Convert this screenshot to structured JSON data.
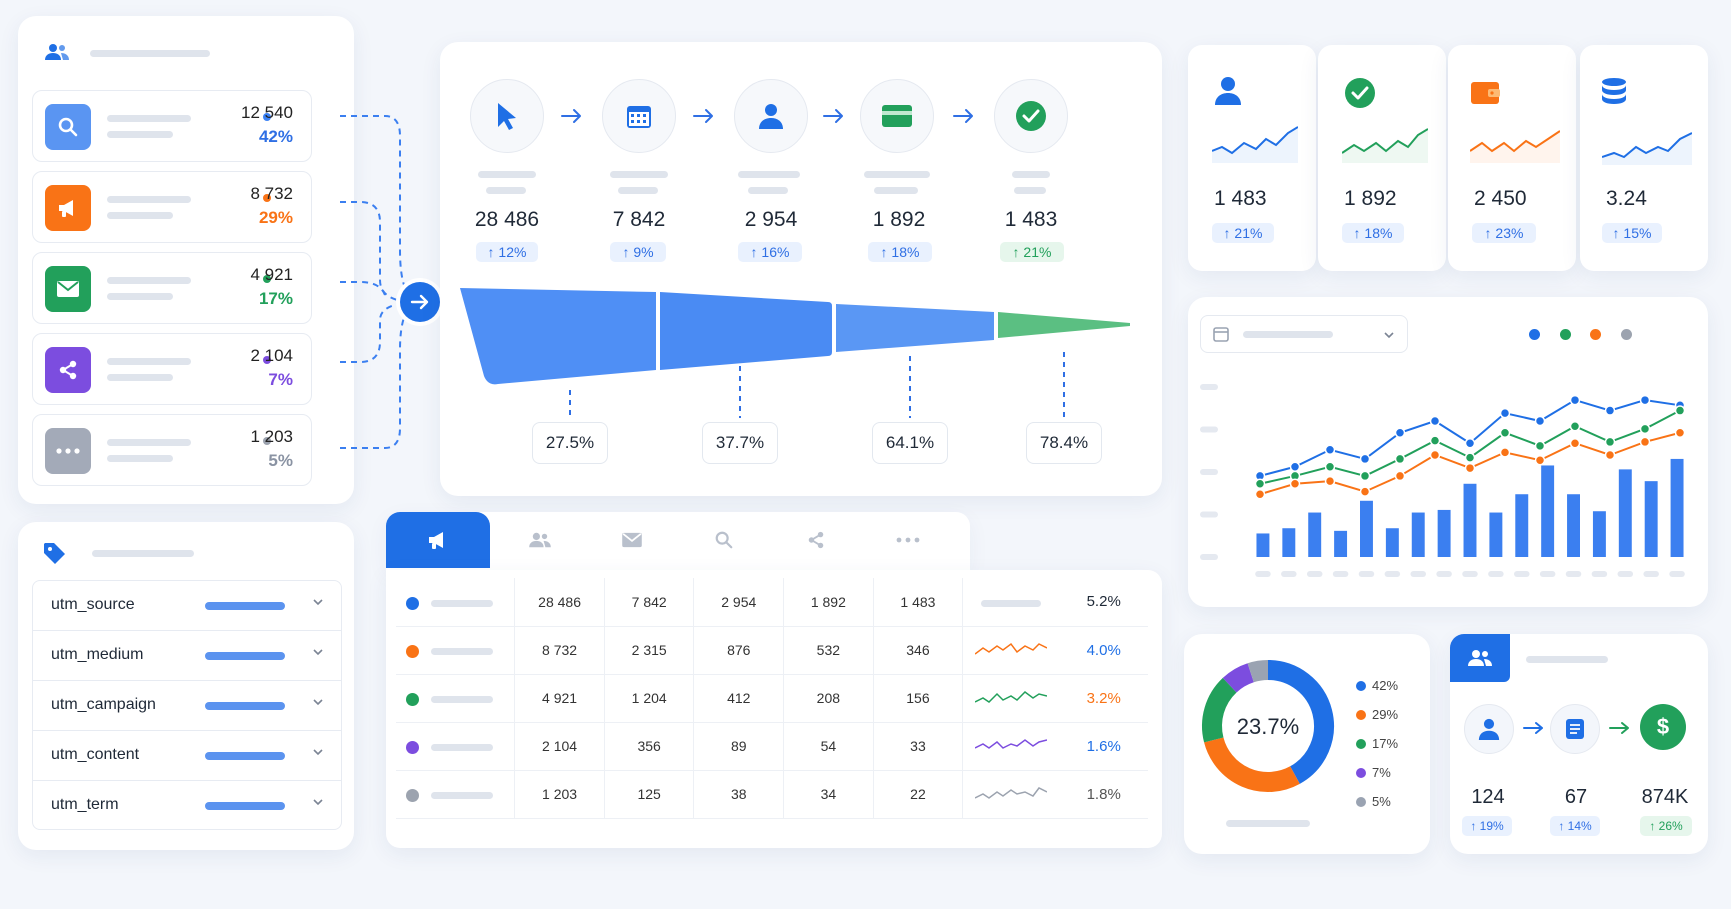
{
  "sources": [
    {
      "value": "12 540",
      "pct": "42%",
      "color": "#3b82f6",
      "icon": "search-icon"
    },
    {
      "value": "8 732",
      "pct": "29%",
      "color": "#f97316",
      "icon": "megaphone-icon"
    },
    {
      "value": "4 921",
      "pct": "17%",
      "color": "#22a05b",
      "icon": "mail-icon"
    },
    {
      "value": "2 104",
      "pct": "7%",
      "color": "#7c4ddf",
      "icon": "share-icon"
    },
    {
      "value": "1 203",
      "pct": "5%",
      "color": "#9ca3af",
      "icon": "more-icon"
    }
  ],
  "funnel": {
    "steps": [
      {
        "value": "28 486",
        "change": "↑ 12%",
        "icon": "cursor-icon",
        "color": "#1f6fe5"
      },
      {
        "value": "7 842",
        "change": "↑ 9%",
        "icon": "calendar-icon",
        "color": "#1f6fe5"
      },
      {
        "value": "2 954",
        "change": "↑ 16%",
        "icon": "user-icon",
        "color": "#1f6fe5"
      },
      {
        "value": "1 892",
        "change": "↑ 18%",
        "icon": "card-icon",
        "color": "#22a05b"
      },
      {
        "value": "1 483",
        "change": "↑ 21%",
        "icon": "check-icon",
        "color": "#22a05b"
      }
    ],
    "conversions": [
      "27.5%",
      "37.7%",
      "64.1%",
      "78.4%"
    ]
  },
  "kpis": [
    {
      "value": "1 483",
      "change": "↑ 21%",
      "icon": "user-icon",
      "color": "#1f6fe5"
    },
    {
      "value": "1 892",
      "change": "↑ 18%",
      "icon": "check-icon",
      "color": "#22a05b"
    },
    {
      "value": "2 450",
      "change": "↑ 23%",
      "icon": "wallet-icon",
      "color": "#f97316"
    },
    {
      "value": "3.24",
      "change": "↑ 15%",
      "icon": "database-icon",
      "color": "#1f6fe5"
    }
  ],
  "utm": {
    "params": [
      "utm_source",
      "utm_medium",
      "utm_campaign",
      "utm_content",
      "utm_term"
    ]
  },
  "table": {
    "tabs": [
      "megaphone-icon",
      "users-icon",
      "mail-icon",
      "search-icon",
      "share-icon",
      "more-icon"
    ],
    "rows": [
      {
        "color": "#1f6fe5",
        "cells": [
          "28 486",
          "7 842",
          "2 954",
          "1 892",
          "1 483"
        ],
        "rate": "5.2%",
        "rate_color": "#1f2937"
      },
      {
        "color": "#f97316",
        "cells": [
          "8 732",
          "2 315",
          "876",
          "532",
          "346"
        ],
        "rate": "4.0%",
        "rate_color": "#1f6fe5"
      },
      {
        "color": "#22a05b",
        "cells": [
          "4 921",
          "1 204",
          "412",
          "208",
          "156"
        ],
        "rate": "3.2%",
        "rate_color": "#f97316"
      },
      {
        "color": "#7c4ddf",
        "cells": [
          "2 104",
          "356",
          "89",
          "54",
          "33"
        ],
        "rate": "1.6%",
        "rate_color": "#1f6fe5"
      },
      {
        "color": "#9ca3af",
        "cells": [
          "1 203",
          "125",
          "38",
          "34",
          "22"
        ],
        "rate": "1.8%",
        "rate_color": "#555"
      }
    ]
  },
  "chart_data": [
    {
      "type": "bar",
      "series": [
        {
          "type": "bar",
          "color": "#3b7ff0",
          "values": [
            18,
            22,
            34,
            20,
            43,
            22,
            34,
            36,
            56,
            34,
            48,
            70,
            48,
            35,
            67,
            58,
            75
          ]
        },
        {
          "type": "line",
          "color": "#1f6fe5",
          "values": [
            62,
            69,
            82,
            75,
            95,
            104,
            87,
            110,
            104,
            120,
            112,
            120,
            116
          ]
        },
        {
          "type": "line",
          "color": "#22a05b",
          "values": [
            56,
            62,
            69,
            62,
            75,
            89,
            76,
            95,
            85,
            100,
            88,
            98,
            112
          ]
        },
        {
          "type": "line",
          "color": "#f97316",
          "values": [
            48,
            56,
            58,
            50,
            62,
            78,
            68,
            80,
            74,
            87,
            78,
            88,
            95
          ]
        }
      ],
      "legend_colors": [
        "#1f6fe5",
        "#22a05b",
        "#f97316",
        "#9ca3af"
      ],
      "ylim": [
        0,
        130
      ]
    },
    {
      "type": "pie",
      "center_label": "23.7%",
      "values": [
        42,
        29,
        17,
        7,
        5
      ],
      "labels": [
        "42%",
        "29%",
        "17%",
        "7%",
        "5%"
      ],
      "colors": [
        "#1f6fe5",
        "#f97316",
        "#22a05b",
        "#7c4ddf",
        "#9aa3b2"
      ]
    }
  ],
  "flow": {
    "steps": [
      {
        "icon": "user-icon",
        "value": "124",
        "change": "↑ 19%"
      },
      {
        "icon": "document-icon",
        "value": "67",
        "change": "↑ 14%"
      },
      {
        "icon": "dollar-icon",
        "value": "874K",
        "change": "↑ 26%"
      }
    ]
  },
  "center_arrow_icon": "arrow-right-icon"
}
